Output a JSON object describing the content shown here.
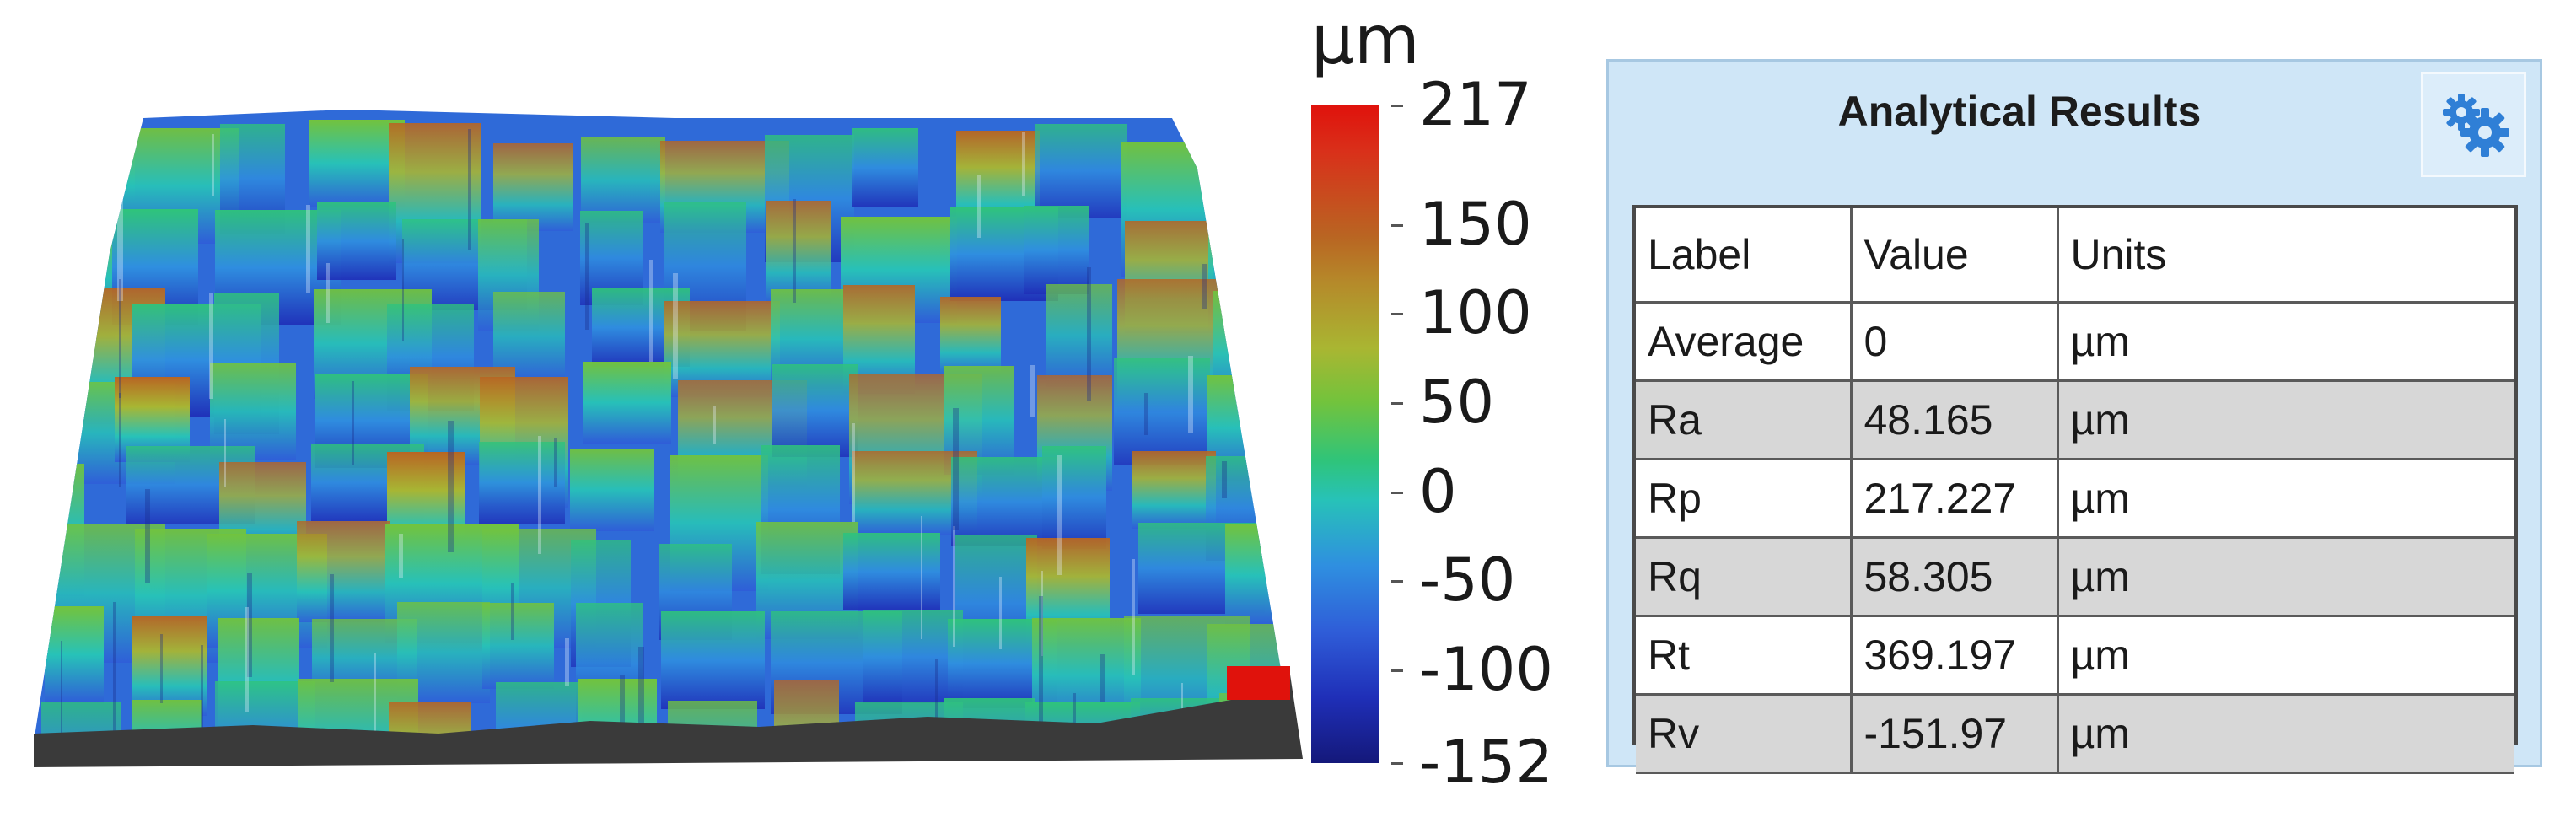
{
  "surface_view": {
    "colors": {
      "low": "#14187a",
      "mid": "#2fc47a",
      "high": "#e0120c",
      "base": "#3a3a3a"
    }
  },
  "color_scale": {
    "unit": "µm",
    "ticks": [
      "217",
      "150",
      "100",
      "50",
      "0",
      "-50",
      "-100",
      "-152"
    ],
    "tick_values": [
      217,
      150,
      100,
      50,
      0,
      -50,
      -100,
      -152
    ]
  },
  "results_panel": {
    "title": "Analytical Results",
    "settings_icon": "gears-icon",
    "columns": [
      "Label",
      "Value",
      "Units"
    ],
    "rows": [
      {
        "label": "Average",
        "value": "0",
        "units": "µm"
      },
      {
        "label": "Ra",
        "value": "48.165",
        "units": "µm"
      },
      {
        "label": "Rp",
        "value": "217.227",
        "units": "µm"
      },
      {
        "label": "Rq",
        "value": "58.305",
        "units": "µm"
      },
      {
        "label": "Rt",
        "value": "369.197",
        "units": "µm"
      },
      {
        "label": "Rv",
        "value": "-151.97",
        "units": "µm"
      }
    ]
  }
}
